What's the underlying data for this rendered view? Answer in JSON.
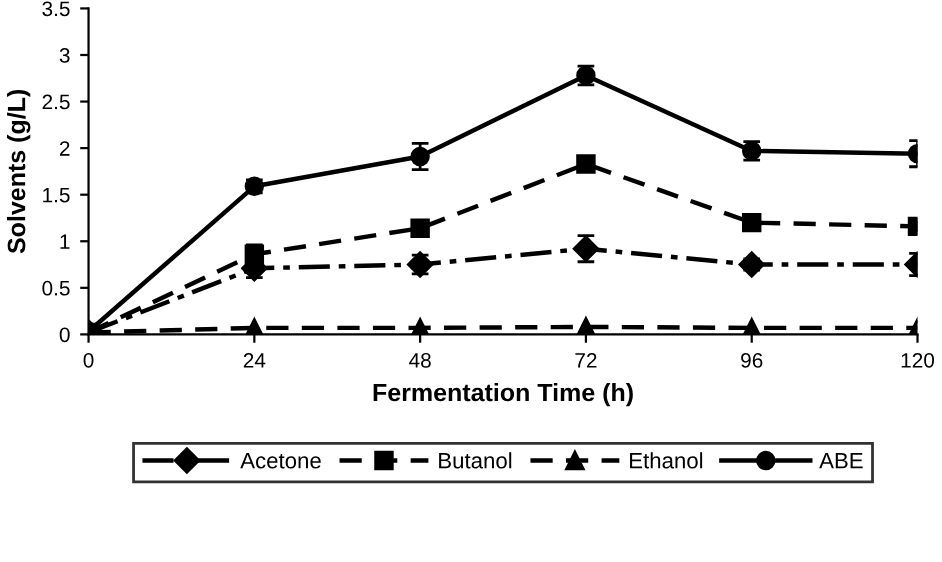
{
  "chart_data": {
    "type": "line",
    "xlabel": "Fermentation Time (h)",
    "ylabel": "Solvents (g/L)",
    "x": [
      0,
      24,
      48,
      72,
      96,
      120
    ],
    "xlim": [
      0,
      120
    ],
    "xticks": [
      0,
      24,
      48,
      72,
      96,
      120
    ],
    "ylim": [
      0,
      3.5
    ],
    "yticks": [
      0,
      0.5,
      1,
      1.5,
      2,
      2.5,
      3,
      3.5
    ],
    "grid": false,
    "legend": "bottom",
    "series": [
      {
        "name": "Acetone",
        "color": "#000000",
        "marker": "diamond",
        "line_style": "dashdot",
        "values": [
          0.02,
          0.71,
          0.75,
          0.92,
          0.75,
          0.75
        ],
        "errors": [
          null,
          0.1,
          0.1,
          0.14,
          0.06,
          0.12
        ]
      },
      {
        "name": "Butanol",
        "color": "#000000",
        "marker": "square",
        "line_style": "dashed",
        "values": [
          0.02,
          0.86,
          1.14,
          1.83,
          1.2,
          1.16
        ],
        "errors": [
          null,
          0.1,
          0.05,
          0.04,
          0.05,
          0.05
        ]
      },
      {
        "name": "Ethanol",
        "color": "#000000",
        "marker": "triangle",
        "line_style": "dashed",
        "values": [
          0.02,
          0.07,
          0.07,
          0.08,
          0.07,
          0.07
        ],
        "errors": [
          null,
          null,
          null,
          null,
          null,
          null
        ]
      },
      {
        "name": "ABE",
        "color": "#000000",
        "marker": "circle",
        "line_style": "solid",
        "values": [
          0.03,
          1.59,
          1.91,
          2.78,
          1.97,
          1.94
        ],
        "errors": [
          null,
          0.07,
          0.14,
          0.1,
          0.1,
          0.14
        ]
      }
    ]
  }
}
